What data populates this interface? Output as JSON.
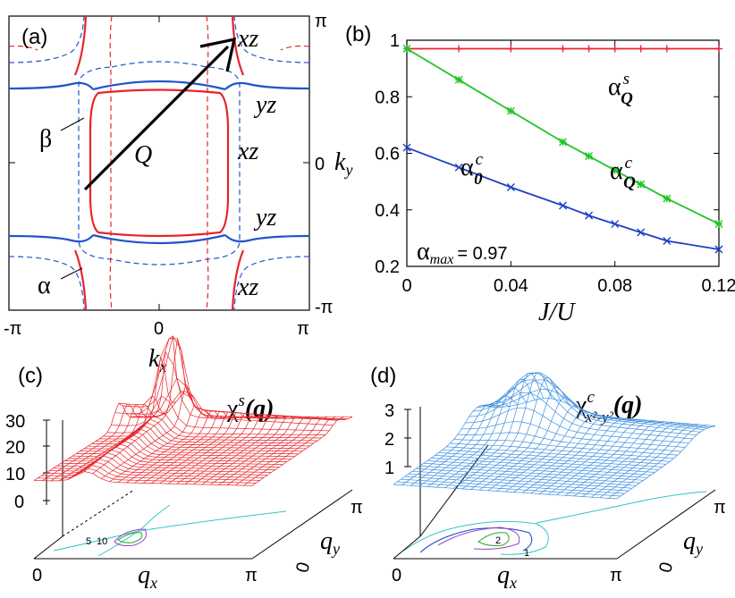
{
  "panel_a": {
    "label": "(a)",
    "x_ticks": [
      "-π",
      "0",
      "π"
    ],
    "y_ticks": [
      "π",
      "0",
      "-π"
    ],
    "xlabel": "k",
    "xlabel_sub": "x",
    "ylabel": "k",
    "ylabel_sub": "y",
    "vector_label": "Q",
    "band_labels": {
      "xz_top": "xz",
      "yz_upper": "yz",
      "xz_mid": "xz",
      "yz_lower": "yz",
      "xz_bottom": "xz"
    },
    "beta": "β",
    "alpha": "α",
    "colors": {
      "xz": "#e8242b",
      "yz": "#2255cc"
    }
  },
  "panel_b": {
    "label": "(b)",
    "annot_max": "α",
    "annot_max_sub": "max",
    "annot_max_val": "= 0.97",
    "curve_labels": {
      "s_Q": {
        "base": "α",
        "sup": "s",
        "sub": "Q"
      },
      "c_Q": {
        "base": "α",
        "sup": "c",
        "sub": "Q"
      },
      "c_0": {
        "base": "α",
        "sup": "c",
        "sub": "0"
      }
    }
  },
  "chart_data": [
    {
      "type": "line",
      "panel": "(b)",
      "xlabel": "J/U",
      "ylabel": "",
      "xlim": [
        0,
        0.12
      ],
      "ylim": [
        0.2,
        1.0
      ],
      "x_ticks": [
        "0",
        "0.04",
        "0.08",
        "0.12"
      ],
      "y_ticks": [
        "0.2",
        "0.4",
        "0.6",
        "0.8",
        "1"
      ],
      "series": [
        {
          "name": "α^s_Q",
          "color": "#e8242b",
          "marker": "+",
          "x": [
            0,
            0.02,
            0.04,
            0.06,
            0.07,
            0.08,
            0.09,
            0.1,
            0.12
          ],
          "y": [
            0.97,
            0.97,
            0.97,
            0.97,
            0.97,
            0.97,
            0.97,
            0.97,
            0.97
          ]
        },
        {
          "name": "α^c_Q",
          "color": "#22c422",
          "marker": "*",
          "x": [
            0,
            0.02,
            0.04,
            0.06,
            0.07,
            0.08,
            0.09,
            0.1,
            0.12
          ],
          "y": [
            0.97,
            0.86,
            0.75,
            0.64,
            0.59,
            0.54,
            0.49,
            0.44,
            0.35
          ]
        },
        {
          "name": "α^c_0",
          "color": "#1d3fc7",
          "marker": "x",
          "x": [
            0,
            0.02,
            0.04,
            0.06,
            0.07,
            0.08,
            0.09,
            0.1,
            0.12
          ],
          "y": [
            0.62,
            0.55,
            0.48,
            0.415,
            0.38,
            0.35,
            0.32,
            0.29,
            0.26
          ]
        }
      ]
    },
    {
      "type": "surface",
      "panel": "(c)",
      "title": "χ^s(q)",
      "xlabel": "q_x",
      "ylabel": "q_y",
      "x_ticks": [
        "0",
        "π"
      ],
      "y_ticks": [
        "0",
        "π"
      ],
      "z_ticks": [
        "0",
        "10",
        "20",
        "30"
      ],
      "contour_labels": [
        "5",
        "10"
      ],
      "color": "#e8242b"
    },
    {
      "type": "surface",
      "panel": "(d)",
      "title": "χ^c_{x²-y²}(q)",
      "xlabel": "q_x",
      "ylabel": "q_y",
      "x_ticks": [
        "0",
        "π"
      ],
      "y_ticks": [
        "0",
        "π"
      ],
      "z_ticks": [
        "1",
        "2",
        "3"
      ],
      "contour_labels": [
        "2",
        "1"
      ],
      "color": "#3d8fe0"
    }
  ],
  "panel_c": {
    "label": "(c)",
    "title_base": "χ",
    "title_sup": "s",
    "title_arg": "(q)",
    "x0": "0",
    "xpi": "π",
    "y0": "0",
    "ypi": "π",
    "qx": "q",
    "qx_sub": "x",
    "qy": "q",
    "qy_sub": "y",
    "z": [
      "30",
      "20",
      "10",
      "0"
    ],
    "c5": "5",
    "c10": "10"
  },
  "panel_d": {
    "label": "(d)",
    "title_base": "χ",
    "title_sub": "x²-y²",
    "title_sup": "c",
    "title_arg": "(q)",
    "x0": "0",
    "xpi": "π",
    "y0": "0",
    "ypi": "π",
    "qx": "q",
    "qx_sub": "x",
    "qy": "q",
    "qy_sub": "y",
    "z": [
      "3",
      "2",
      "1"
    ],
    "c2": "2",
    "c1": "1"
  }
}
